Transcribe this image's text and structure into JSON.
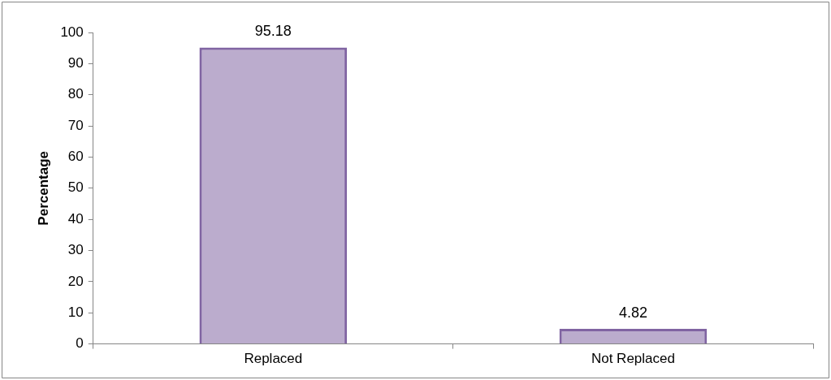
{
  "chart_data": {
    "type": "bar",
    "ylabel": "Percentage",
    "categories": [
      "Replaced",
      "Not Replaced"
    ],
    "values": [
      95.18,
      4.82
    ],
    "color": "#8064a2",
    "ylim": [
      0,
      100
    ],
    "yticks": [
      0,
      10,
      20,
      30,
      40,
      50,
      60,
      70,
      80,
      90,
      100
    ],
    "grid": false,
    "legend": false,
    "data_labels": true
  }
}
